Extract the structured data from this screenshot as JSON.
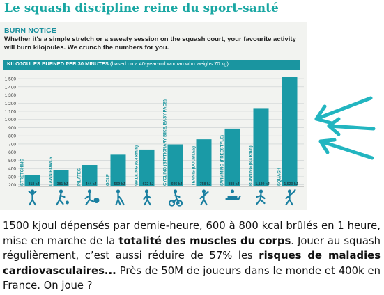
{
  "heading": "Le squash discipline reine du sport-santé",
  "figure": {
    "kicker": "BURN NOTICE",
    "intro": "Whether it's a simple stretch or a sweaty session on the squash court, your favourite activity will burn kilojoules. We crunch the numbers for you.",
    "band_title_bold": "KILOJOULES BURNED PER 30 MINUTES",
    "band_title_rest": " (based on a 40-year-old woman who weighs 70 kg)"
  },
  "colors": {
    "accent": "#1aa7a3",
    "bar_fill": "#1a9aa6",
    "band": "#1a95a0",
    "arrow": "#22b5c0",
    "icon": "#1a7fa0"
  },
  "chart_data": {
    "type": "bar",
    "title": "KILOJOULES BURNED PER 30 MINUTES",
    "subtitle": "(based on a 40-year-old woman who weighs 70 kg)",
    "categories": [
      "STRETCHING",
      "LAWN BOWLS",
      "PILATES",
      "GOLF",
      "WALKING (6.4 km/h)",
      "CYCLING (STATIONARY BIKE, EASY PACE)",
      "TENNIS (DOUBLES)",
      "SWIMMING (FREESTYLE)",
      "RUNNING (8.4 km/h)",
      "SQUASH"
    ],
    "values": [
      318,
      381,
      444,
      569,
      632,
      695,
      758,
      888,
      1139,
      1520
    ],
    "value_labels": [
      "318 kJ",
      "381 kJ",
      "444 kJ",
      "569 kJ",
      "632 kJ",
      "695 kJ",
      "758 kJ",
      "888 kJ",
      "1,139 kJ",
      "1,520 kJ"
    ],
    "yticks": [
      "200",
      "300",
      "400",
      "500",
      "600",
      "700",
      "800",
      "900",
      "1,000",
      "1,100",
      "1,200",
      "1,300",
      "1,400",
      "1,500"
    ],
    "ylim": [
      180,
      1560
    ],
    "grid": true,
    "icons": [
      "stretching-icon",
      "lawn-bowls-icon",
      "pilates-icon",
      "golf-icon",
      "walking-icon",
      "cycling-icon",
      "tennis-icon",
      "swimming-icon",
      "running-icon",
      "squash-icon"
    ]
  },
  "caption": {
    "p1": "1500 kjoul dépensés par demie-heure, 600 à 800 kcal brûlés en 1 heure, mise en marche de la ",
    "b1": "totalité des muscles du corps",
    "p2": ". Jouer au squash régulièrement, c’est aussi réduire de 57% les ",
    "b2": "risques de maladies cardiovasculaires...",
    "p3": " Près de 50M de joueurs dans le monde et 400k en France. On joue ?"
  }
}
